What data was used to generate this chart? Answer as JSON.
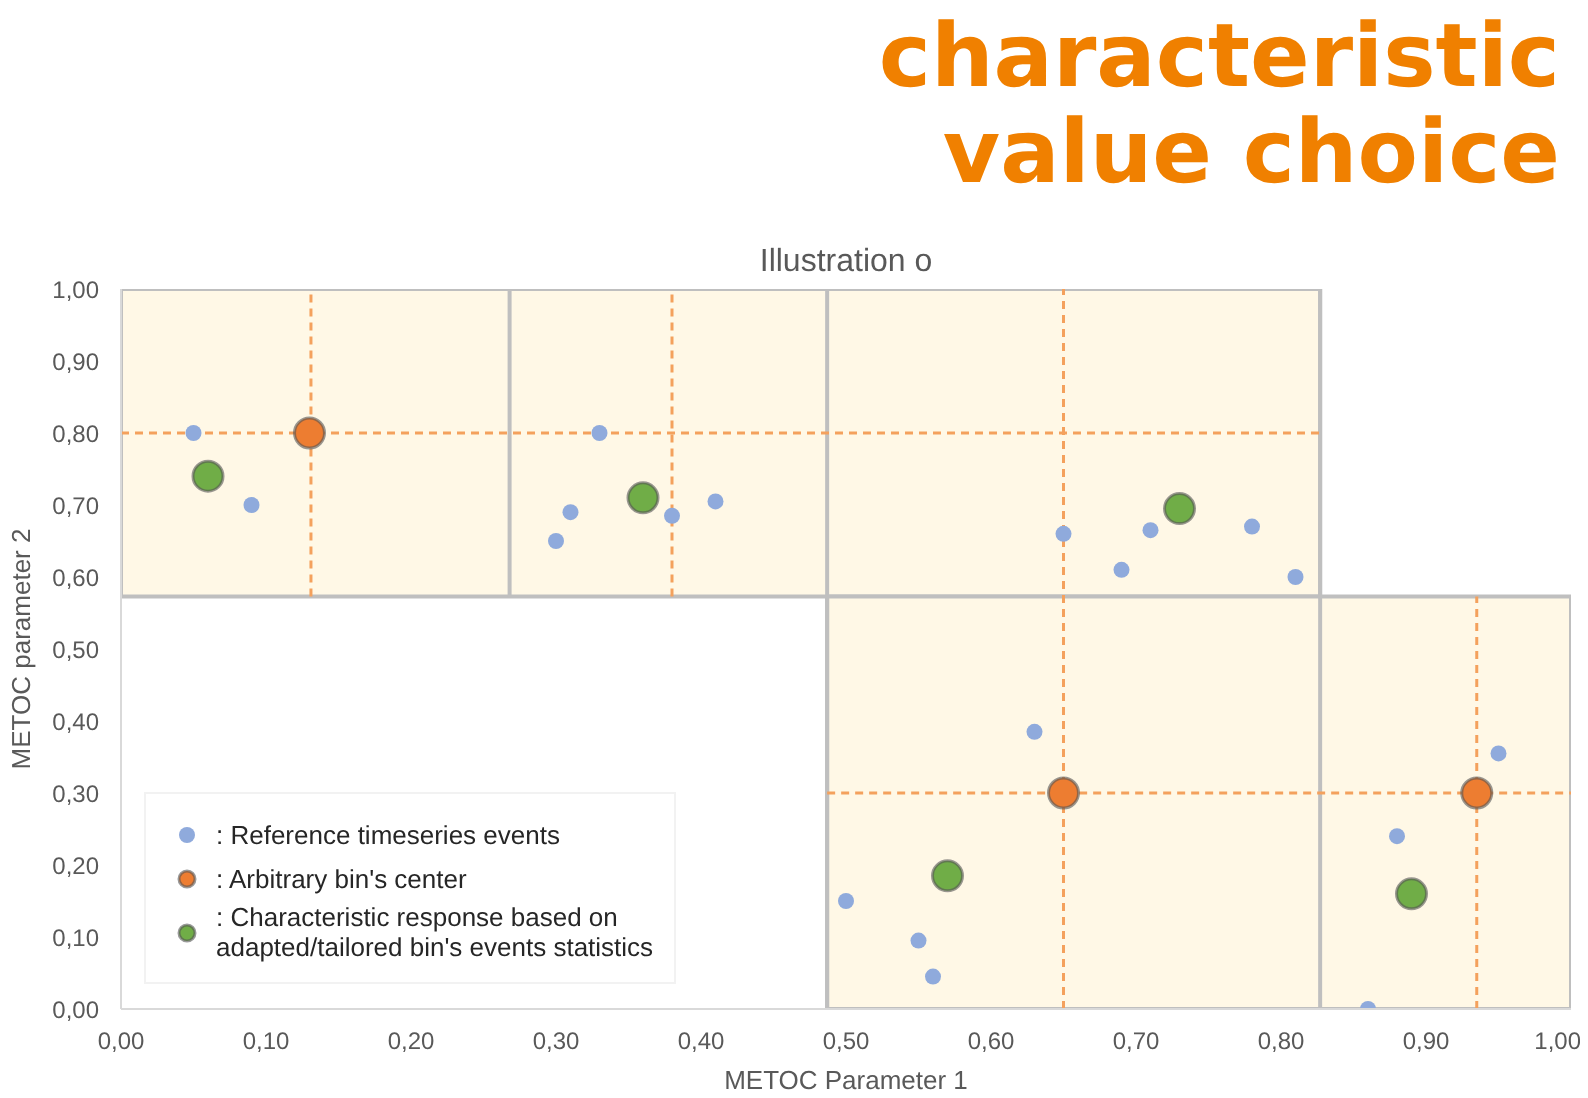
{
  "chart_data": {
    "type": "scatter",
    "title": "Illustration o",
    "xlabel": "METOC Parameter 1",
    "ylabel": "METOC parameter 2",
    "annotations": [
      "characteristic value choice"
    ],
    "xlim": [
      0,
      1.0
    ],
    "ylim": [
      0,
      1.0
    ],
    "xticks": [
      {
        "value": 0,
        "label": "0,00"
      },
      {
        "value": 0.1,
        "label": "0,10"
      },
      {
        "value": 0.2,
        "label": "0,20"
      },
      {
        "value": 0.3,
        "label": "0,30"
      },
      {
        "value": 0.4,
        "label": "0,40"
      },
      {
        "value": 0.5,
        "label": "0,50"
      },
      {
        "value": 0.6,
        "label": "0,60"
      },
      {
        "value": 0.7,
        "label": "0,70"
      },
      {
        "value": 0.8,
        "label": "0,80"
      },
      {
        "value": 0.9,
        "label": "0,90"
      },
      {
        "value": 1.0,
        "label": "1,00"
      }
    ],
    "yticks": [
      {
        "value": 0,
        "label": "0,00"
      },
      {
        "value": 0.1,
        "label": "0,10"
      },
      {
        "value": 0.2,
        "label": "0,20"
      },
      {
        "value": 0.3,
        "label": "0,30"
      },
      {
        "value": 0.4,
        "label": "0,40"
      },
      {
        "value": 0.5,
        "label": "0,50"
      },
      {
        "value": 0.6,
        "label": "0,60"
      },
      {
        "value": 0.7,
        "label": "0,70"
      },
      {
        "value": 0.8,
        "label": "0,80"
      },
      {
        "value": 0.9,
        "label": "0,90"
      },
      {
        "value": 1.0,
        "label": "1,00"
      }
    ],
    "grid": false,
    "legend": "bottom left",
    "series": [
      {
        "type": "line",
        "color": "#bfbfbf",
        "line_style": "solid",
        "x": [
          0.268,
          0.268
        ],
        "values": [
          0.573,
          1.0
        ]
      },
      {
        "type": "line",
        "color": "#bfbfbf",
        "line_style": "solid",
        "x": [
          0.487,
          0.487
        ],
        "values": [
          0,
          1.0
        ]
      },
      {
        "type": "line",
        "color": "#bfbfbf",
        "line_style": "solid",
        "x": [
          0.827,
          0.827
        ],
        "values": [
          0,
          1.0
        ]
      },
      {
        "type": "line",
        "color": "#f4a15d",
        "line_style": "dashed",
        "x": [
          0,
          0.827
        ],
        "values": [
          0.8,
          0.8
        ],
        "lower": [
          0.573,
          0.573
        ],
        "upper": [
          1.0,
          1.0
        ]
      },
      {
        "type": "line",
        "color": "#f4a15d",
        "line_style": "dashed",
        "x": [
          0.487,
          1.0
        ],
        "values": [
          0.3,
          0.3
        ],
        "lower": [
          0,
          0
        ],
        "upper": [
          0.573,
          0.573
        ]
      },
      {
        "type": "line",
        "color": "#f4a15d",
        "line_style": "dashed",
        "x": [
          0.131,
          0.131
        ],
        "values": [
          0.573,
          1.0
        ]
      },
      {
        "type": "line",
        "color": "#f4a15d",
        "line_style": "dashed",
        "x": [
          0.38,
          0.38
        ],
        "values": [
          0.573,
          1.0
        ]
      },
      {
        "type": "line",
        "color": "#f4a15d",
        "line_style": "dashed",
        "x": [
          0.65,
          0.65
        ],
        "values": [
          0,
          1.0
        ]
      },
      {
        "type": "line",
        "color": "#f4a15d",
        "line_style": "dashed",
        "x": [
          0.935,
          0.935
        ],
        "values": [
          0,
          0.573
        ]
      },
      {
        "name": ": Reference timeseries events",
        "color": "#8faadc",
        "marker": "circle",
        "x": [
          0.05,
          0.09,
          0.33,
          0.31,
          0.3,
          0.38,
          0.41,
          0.65,
          0.69,
          0.71,
          0.78,
          0.81,
          0.63,
          0.5,
          0.55,
          0.56,
          0.86,
          0.88,
          0.95
        ],
        "values": [
          0.8,
          0.7,
          0.8,
          0.69,
          0.65,
          0.685,
          0.705,
          0.66,
          0.61,
          0.665,
          0.67,
          0.6,
          0.385,
          0.15,
          0.095,
          0.045,
          0.0,
          0.24,
          0.355
        ]
      },
      {
        "name": ": Arbitrary bin's center",
        "color": "#ed7d31",
        "marker": "circle",
        "x": [
          0.13,
          0.65,
          0.935
        ],
        "values": [
          0.8,
          0.3,
          0.3
        ]
      },
      {
        "name": ": Characteristic response based on\nadapted/tailored bin's events statistics",
        "color": "#70ad47",
        "marker": "circle",
        "x": [
          0.06,
          0.36,
          0.73,
          0.57,
          0.89
        ],
        "values": [
          0.74,
          0.71,
          0.695,
          0.185,
          0.16
        ]
      }
    ]
  }
}
